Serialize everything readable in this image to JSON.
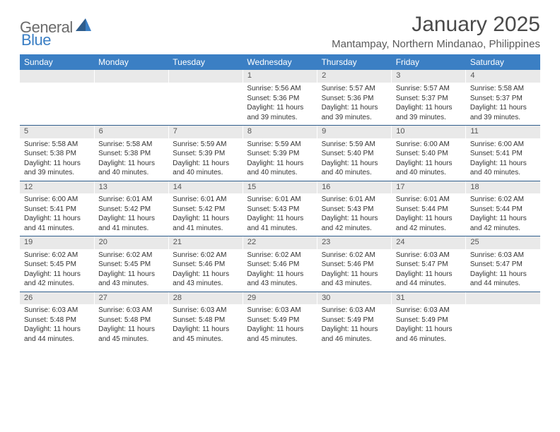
{
  "brand": {
    "general": "General",
    "blue": "Blue"
  },
  "title": "January 2025",
  "location": "Mantampay, Northern Mindanao, Philippines",
  "colors": {
    "header_bg": "#3b7fc4",
    "header_text": "#ffffff",
    "daynum_bg": "#e9e9e9",
    "row_divider": "#2f5d8c",
    "logo_gray": "#6b6b6b",
    "logo_blue": "#3b7fc4"
  },
  "weekdays": [
    "Sunday",
    "Monday",
    "Tuesday",
    "Wednesday",
    "Thursday",
    "Friday",
    "Saturday"
  ],
  "weeks": [
    [
      null,
      null,
      null,
      {
        "n": "1",
        "sr": "5:56 AM",
        "ss": "5:36 PM",
        "dl": "11 hours and 39 minutes."
      },
      {
        "n": "2",
        "sr": "5:57 AM",
        "ss": "5:36 PM",
        "dl": "11 hours and 39 minutes."
      },
      {
        "n": "3",
        "sr": "5:57 AM",
        "ss": "5:37 PM",
        "dl": "11 hours and 39 minutes."
      },
      {
        "n": "4",
        "sr": "5:58 AM",
        "ss": "5:37 PM",
        "dl": "11 hours and 39 minutes."
      }
    ],
    [
      {
        "n": "5",
        "sr": "5:58 AM",
        "ss": "5:38 PM",
        "dl": "11 hours and 39 minutes."
      },
      {
        "n": "6",
        "sr": "5:58 AM",
        "ss": "5:38 PM",
        "dl": "11 hours and 40 minutes."
      },
      {
        "n": "7",
        "sr": "5:59 AM",
        "ss": "5:39 PM",
        "dl": "11 hours and 40 minutes."
      },
      {
        "n": "8",
        "sr": "5:59 AM",
        "ss": "5:39 PM",
        "dl": "11 hours and 40 minutes."
      },
      {
        "n": "9",
        "sr": "5:59 AM",
        "ss": "5:40 PM",
        "dl": "11 hours and 40 minutes."
      },
      {
        "n": "10",
        "sr": "6:00 AM",
        "ss": "5:40 PM",
        "dl": "11 hours and 40 minutes."
      },
      {
        "n": "11",
        "sr": "6:00 AM",
        "ss": "5:41 PM",
        "dl": "11 hours and 40 minutes."
      }
    ],
    [
      {
        "n": "12",
        "sr": "6:00 AM",
        "ss": "5:41 PM",
        "dl": "11 hours and 41 minutes."
      },
      {
        "n": "13",
        "sr": "6:01 AM",
        "ss": "5:42 PM",
        "dl": "11 hours and 41 minutes."
      },
      {
        "n": "14",
        "sr": "6:01 AM",
        "ss": "5:42 PM",
        "dl": "11 hours and 41 minutes."
      },
      {
        "n": "15",
        "sr": "6:01 AM",
        "ss": "5:43 PM",
        "dl": "11 hours and 41 minutes."
      },
      {
        "n": "16",
        "sr": "6:01 AM",
        "ss": "5:43 PM",
        "dl": "11 hours and 42 minutes."
      },
      {
        "n": "17",
        "sr": "6:01 AM",
        "ss": "5:44 PM",
        "dl": "11 hours and 42 minutes."
      },
      {
        "n": "18",
        "sr": "6:02 AM",
        "ss": "5:44 PM",
        "dl": "11 hours and 42 minutes."
      }
    ],
    [
      {
        "n": "19",
        "sr": "6:02 AM",
        "ss": "5:45 PM",
        "dl": "11 hours and 42 minutes."
      },
      {
        "n": "20",
        "sr": "6:02 AM",
        "ss": "5:45 PM",
        "dl": "11 hours and 43 minutes."
      },
      {
        "n": "21",
        "sr": "6:02 AM",
        "ss": "5:46 PM",
        "dl": "11 hours and 43 minutes."
      },
      {
        "n": "22",
        "sr": "6:02 AM",
        "ss": "5:46 PM",
        "dl": "11 hours and 43 minutes."
      },
      {
        "n": "23",
        "sr": "6:02 AM",
        "ss": "5:46 PM",
        "dl": "11 hours and 43 minutes."
      },
      {
        "n": "24",
        "sr": "6:03 AM",
        "ss": "5:47 PM",
        "dl": "11 hours and 44 minutes."
      },
      {
        "n": "25",
        "sr": "6:03 AM",
        "ss": "5:47 PM",
        "dl": "11 hours and 44 minutes."
      }
    ],
    [
      {
        "n": "26",
        "sr": "6:03 AM",
        "ss": "5:48 PM",
        "dl": "11 hours and 44 minutes."
      },
      {
        "n": "27",
        "sr": "6:03 AM",
        "ss": "5:48 PM",
        "dl": "11 hours and 45 minutes."
      },
      {
        "n": "28",
        "sr": "6:03 AM",
        "ss": "5:48 PM",
        "dl": "11 hours and 45 minutes."
      },
      {
        "n": "29",
        "sr": "6:03 AM",
        "ss": "5:49 PM",
        "dl": "11 hours and 45 minutes."
      },
      {
        "n": "30",
        "sr": "6:03 AM",
        "ss": "5:49 PM",
        "dl": "11 hours and 46 minutes."
      },
      {
        "n": "31",
        "sr": "6:03 AM",
        "ss": "5:49 PM",
        "dl": "11 hours and 46 minutes."
      },
      null
    ]
  ],
  "labels": {
    "sunrise": "Sunrise:",
    "sunset": "Sunset:",
    "daylight": "Daylight:"
  }
}
